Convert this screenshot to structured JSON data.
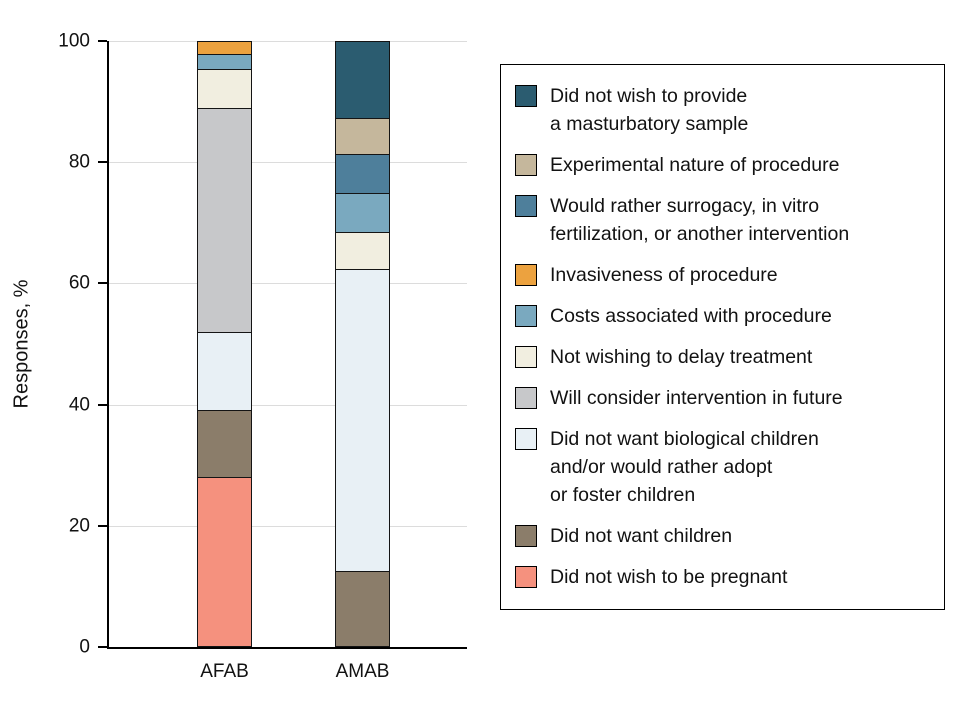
{
  "chart_data": {
    "type": "bar",
    "variant": "stacked",
    "title": "",
    "ylabel": "Responses, %",
    "ylim": [
      0,
      100
    ],
    "yticks": [
      0,
      20,
      40,
      60,
      80,
      100
    ],
    "grid": true,
    "legend_position": "right",
    "categories": [
      "AFAB",
      "AMAB"
    ],
    "series": [
      {
        "name": "Did not wish to be pregnant",
        "color": "#f5917e",
        "values": [
          28,
          0
        ]
      },
      {
        "name": "Did not want children",
        "color": "#8b7d6a",
        "values": [
          11,
          12.5
        ]
      },
      {
        "name": "Did not want biological children and/or would rather adopt or foster children",
        "color": "#e8f0f5",
        "values": [
          13,
          50
        ]
      },
      {
        "name": "Will consider intervention in future",
        "color": "#c7c8ca",
        "values": [
          37,
          0
        ]
      },
      {
        "name": "Not wishing to delay treatment",
        "color": "#f1eee0",
        "values": [
          6.5,
          6
        ]
      },
      {
        "name": "Costs associated with procedure",
        "color": "#7aa9bf",
        "values": [
          2.5,
          6.5
        ]
      },
      {
        "name": "Invasiveness of procedure",
        "color": "#eca23f",
        "values": [
          2,
          0
        ]
      },
      {
        "name": "Would rather surrogacy, in vitro fertilization, or another intervention",
        "color": "#4e7f9b",
        "values": [
          0,
          6.5
        ]
      },
      {
        "name": "Experimental nature of procedure",
        "color": "#c5b79c",
        "values": [
          0,
          6
        ]
      },
      {
        "name": "Did not wish to provide a masturbatory sample",
        "color": "#2b5c70",
        "values": [
          0,
          12.5
        ]
      }
    ]
  },
  "legend": {
    "items": [
      {
        "color": "#2b5c70",
        "lines": [
          "Did not wish to provide",
          "a masturbatory sample"
        ]
      },
      {
        "color": "#c5b79c",
        "lines": [
          "Experimental nature of procedure"
        ]
      },
      {
        "color": "#4e7f9b",
        "lines": [
          "Would rather surrogacy, in vitro",
          "fertilization, or another intervention"
        ]
      },
      {
        "color": "#eca23f",
        "lines": [
          "Invasiveness of procedure"
        ]
      },
      {
        "color": "#7aa9bf",
        "lines": [
          "Costs associated with procedure"
        ]
      },
      {
        "color": "#f1eee0",
        "lines": [
          "Not wishing to delay treatment"
        ]
      },
      {
        "color": "#c7c8ca",
        "lines": [
          "Will consider intervention in future"
        ]
      },
      {
        "color": "#e8f0f5",
        "lines": [
          "Did not want biological children",
          "and/or would rather adopt",
          "or foster children"
        ]
      },
      {
        "color": "#8b7d6a",
        "lines": [
          "Did not want children"
        ]
      },
      {
        "color": "#f5917e",
        "lines": [
          "Did not wish to be pregnant"
        ]
      }
    ]
  }
}
